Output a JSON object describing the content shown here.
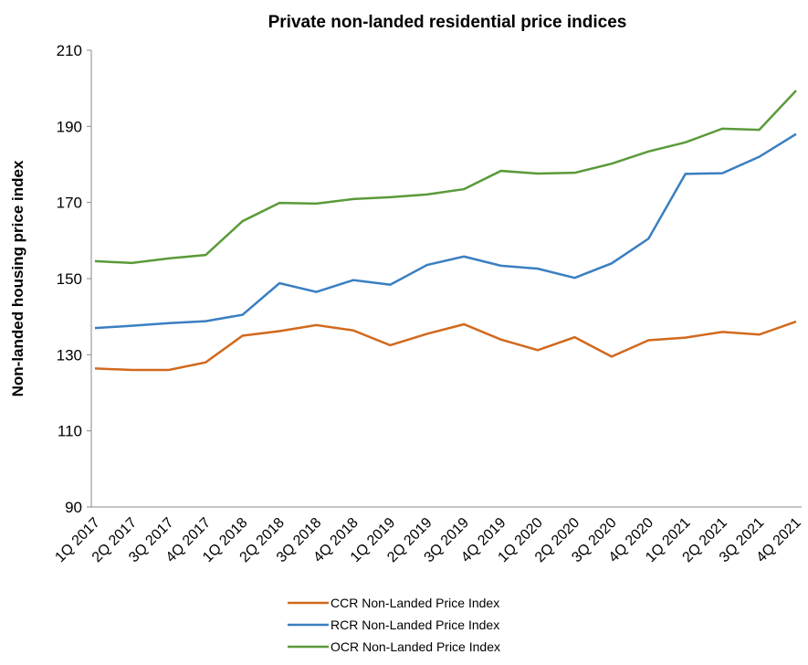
{
  "chart_data": {
    "type": "line",
    "title": "Private non-landed residential price indices",
    "y_label": "Non-landed housing price index",
    "categories": [
      "1Q 2017",
      "2Q 2017",
      "3Q 2017",
      "4Q 2017",
      "1Q 2018",
      "2Q 2018",
      "3Q 2018",
      "4Q 2018",
      "1Q 2019",
      "2Q 2019",
      "3Q 2019",
      "4Q 2019",
      "1Q 2020",
      "2Q 2020",
      "3Q 2020",
      "4Q 2020",
      "1Q 2021",
      "2Q 2021",
      "3Q 2021",
      "4Q 2021"
    ],
    "series": [
      {
        "name": "CCR Non-Landed Price Index",
        "color": "#d2691e",
        "values": [
          126.4,
          126,
          126,
          128,
          135,
          136.2,
          137.8,
          136.4,
          132.5,
          135.5,
          138,
          134,
          131.2,
          134.6,
          129.5,
          133.8,
          134.5,
          136,
          135.3,
          138.7
        ]
      },
      {
        "name": "RCR Non-Landed Price Index",
        "color": "#3a7fc1",
        "values": [
          137,
          137.6,
          138.3,
          138.8,
          140.5,
          148.8,
          146.5,
          149.6,
          148.4,
          153.6,
          155.8,
          153.4,
          152.6,
          150.2,
          154,
          160.5,
          177.5,
          177.7,
          182,
          188
        ]
      },
      {
        "name": "OCR Non-Landed Price Index",
        "color": "#5a9a3a",
        "values": [
          154.6,
          154.1,
          155.3,
          156.2,
          165.1,
          169.9,
          169.7,
          170.9,
          171.4,
          172.1,
          173.5,
          178.3,
          177.6,
          177.8,
          180.2,
          183.4,
          185.8,
          189.4,
          189.1,
          199.4
        ]
      }
    ],
    "ylim": [
      90,
      210
    ],
    "yticks": [
      90,
      110,
      130,
      150,
      170,
      190,
      210
    ],
    "grid": false,
    "legend": "bottom"
  }
}
